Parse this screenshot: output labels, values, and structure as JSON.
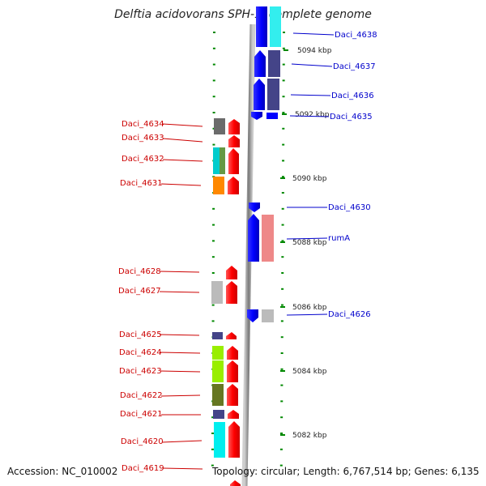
{
  "title": "Delftia acidovorans SPH-1, complete genome",
  "footer": {
    "accession": "Accession: NC_010002",
    "topology": "Topology: circular; Length: 6,767,514 bp; Genes: 6,135"
  },
  "kbp_ticks": [
    "5094 kbp",
    "5092 kbp",
    "5090 kbp",
    "5088 kbp",
    "5086 kbp",
    "5084 kbp",
    "5082 kbp"
  ],
  "genes_left": [
    {
      "name": "Daci_4634",
      "color": "#ff0000",
      "box": "#6b6b6b"
    },
    {
      "name": "Daci_4633",
      "color": "#ff0000",
      "box": null
    },
    {
      "name": "Daci_4632",
      "color": "#ff0000",
      "box": "#00cccc"
    },
    {
      "name": "Daci_4631",
      "color": "#ff0000",
      "box": "#ff8800"
    },
    {
      "name": "Daci_4628",
      "color": "#ff0000",
      "box": null
    },
    {
      "name": "Daci_4627",
      "color": "#ff0000",
      "box": "#bbbbbb"
    },
    {
      "name": "Daci_4625",
      "color": "#ff0000",
      "box": "#444488"
    },
    {
      "name": "Daci_4624",
      "color": "#ff0000",
      "box": "#99ee00"
    },
    {
      "name": "Daci_4623",
      "color": "#ff0000",
      "box": "#99ee00"
    },
    {
      "name": "Daci_4622",
      "color": "#ff0000",
      "box": "#667722"
    },
    {
      "name": "Daci_4621",
      "color": "#ff0000",
      "box": "#444488"
    },
    {
      "name": "Daci_4620",
      "color": "#ff0000",
      "box": "#00eeee"
    },
    {
      "name": "Daci_4619",
      "color": "#ff0000",
      "box": null
    }
  ],
  "genes_right": [
    {
      "name": "Daci_4638",
      "color": "#0000ff",
      "box": "#33eeee"
    },
    {
      "name": "Daci_4637",
      "color": "#0000ff",
      "box": "#444488"
    },
    {
      "name": "Daci_4636",
      "color": "#0000ff",
      "box": "#444488"
    },
    {
      "name": "Daci_4635",
      "color": "#0000ff",
      "box": null
    },
    {
      "name": "Daci_4630",
      "color": "#0000ff",
      "box": null
    },
    {
      "name": "rumA",
      "color": "#0000ff",
      "box": "#ee8888"
    },
    {
      "name": "Daci_4626",
      "color": "#0000ff",
      "box": "#bbbbbb"
    }
  ],
  "colors": {
    "forward": "#ff0000",
    "reverse": "#0000ff",
    "tick": "#008800",
    "backbone": "#888888"
  }
}
